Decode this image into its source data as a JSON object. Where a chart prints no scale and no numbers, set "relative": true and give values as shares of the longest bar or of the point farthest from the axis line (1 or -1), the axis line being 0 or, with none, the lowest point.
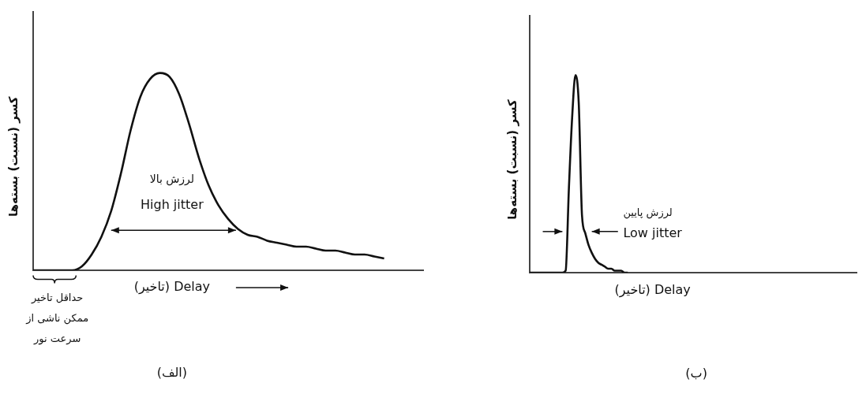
{
  "chart_data": [
    {
      "type": "line",
      "title": "(الف)",
      "xlabel": "(تاخیر) Delay",
      "ylabel": "کسر (نسبت) بسته‌ها",
      "relative": true,
      "annotations": [
        "لرزش بالا",
        "High jitter",
        "حداقل تاخیر ممکن ناشی از سرعت نور"
      ],
      "categories": [
        null,
        null,
        null,
        null,
        null,
        null,
        null,
        null,
        null,
        null,
        null,
        null,
        null,
        null,
        null,
        null,
        null,
        null,
        null,
        null,
        null,
        null,
        null,
        null,
        null,
        null,
        null,
        null,
        null,
        null,
        null,
        null,
        null,
        null,
        null,
        null,
        null,
        null,
        null,
        null,
        null
      ],
      "series": [
        {
          "color": "#111111",
          "values": [
            0,
            0,
            0,
            0,
            0,
            0.02,
            0.08,
            0.17,
            0.3,
            0.49,
            0.71,
            0.88,
            0.97,
            1,
            0.98,
            0.89,
            0.74,
            0.57,
            0.43,
            0.33,
            0.26,
            0.21,
            0.18,
            0.17,
            0.15,
            0.14,
            0.13,
            0.12,
            0.12,
            0.11,
            0.1,
            0.1,
            0.09,
            0.08,
            0.08,
            0.07,
            0.06,
            null,
            null,
            null,
            null
          ]
        }
      ]
    },
    {
      "type": "line",
      "title": "(ب)",
      "xlabel": "(تاخیر) Delay",
      "ylabel": "کسر (نسبت) بسته‌ها",
      "relative": true,
      "annotations": [
        "لرزش پایین",
        "Low jitter"
      ],
      "categories": [
        null,
        null,
        null,
        null,
        null,
        null,
        null,
        null,
        null,
        null,
        null,
        null,
        null,
        null,
        null,
        null,
        null,
        null,
        null,
        null,
        null,
        null,
        null,
        null,
        null,
        null,
        null,
        null,
        null,
        null,
        null,
        null,
        null,
        null,
        null,
        null,
        null,
        null,
        null,
        null,
        null,
        null,
        null,
        null,
        null,
        null,
        null,
        null,
        null,
        null,
        null,
        null,
        null,
        null,
        null,
        null,
        null,
        null,
        null,
        null,
        null,
        null,
        null,
        null,
        null,
        null,
        null,
        null,
        null,
        null,
        null,
        null,
        null,
        null,
        null,
        null,
        null,
        null,
        null,
        null,
        null,
        null,
        null,
        null,
        null,
        null,
        null,
        null,
        null,
        null,
        null,
        null,
        null,
        null,
        null,
        null,
        null,
        null,
        null,
        null,
        null
      ],
      "series": [
        {
          "color": "#111111",
          "values": [
            0,
            0,
            0,
            0,
            0,
            0,
            0,
            0,
            0,
            0,
            0,
            0.01,
            0.43,
            0.79,
            1,
            0.86,
            0.29,
            0.2,
            0.14,
            0.1,
            0.07,
            0.05,
            0.04,
            0.03,
            0.02,
            0.02,
            0.01,
            0.01,
            0.01,
            0,
            0,
            null,
            null,
            null,
            null,
            null,
            null,
            null,
            null,
            null,
            null,
            null,
            null,
            null,
            null,
            null,
            null,
            null,
            null,
            null,
            null,
            null,
            null,
            null,
            null,
            null,
            null,
            null,
            null,
            null,
            null,
            null,
            null,
            null,
            null,
            null,
            null,
            null,
            null,
            null,
            null,
            null,
            null,
            null,
            null,
            null,
            null,
            null,
            null,
            null,
            null,
            null,
            null,
            null,
            null,
            null,
            null,
            null,
            null,
            null,
            null,
            null,
            null,
            null,
            null,
            null,
            null,
            null,
            null,
            null,
            null
          ]
        }
      ]
    }
  ]
}
